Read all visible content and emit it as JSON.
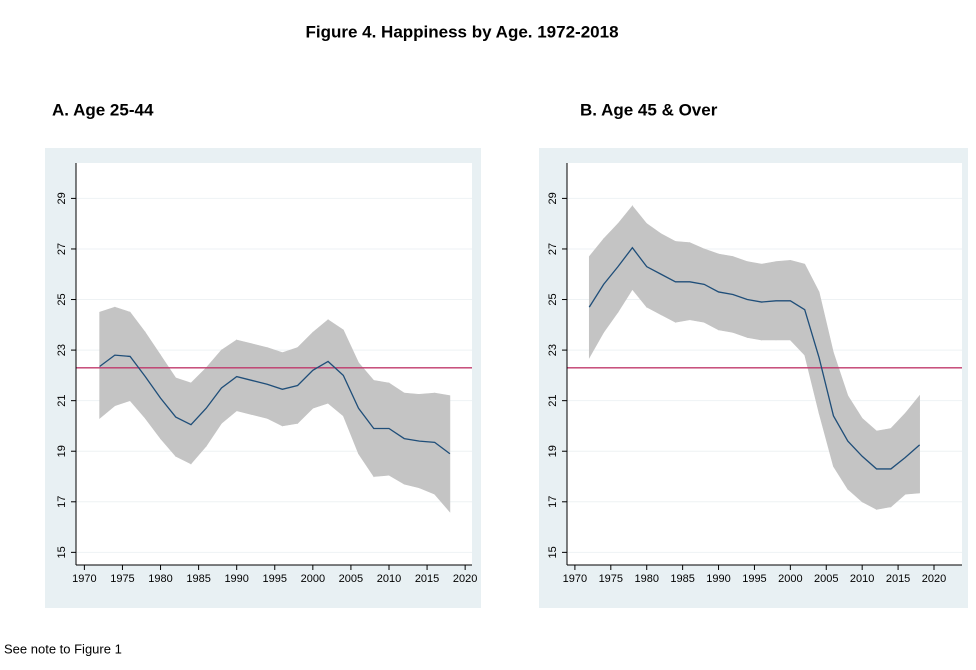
{
  "title": "Figure 4. Happiness by Age. 1972-2018",
  "note": "See note to Figure 1",
  "chart_data": [
    {
      "type": "line",
      "title": "A. Age 25-44",
      "x": [
        1972,
        1974,
        1976,
        1978,
        1980,
        1982,
        1984,
        1986,
        1988,
        1990,
        1992,
        1994,
        1996,
        1998,
        2000,
        2002,
        2004,
        2006,
        2008,
        2010,
        2012,
        2014,
        2016,
        2018
      ],
      "values": [
        22.35,
        22.8,
        22.75,
        21.95,
        21.1,
        20.35,
        20.05,
        20.7,
        21.5,
        21.95,
        21.8,
        21.65,
        21.45,
        21.6,
        22.2,
        22.55,
        22.0,
        20.7,
        19.9,
        19.9,
        19.5,
        19.4,
        19.35,
        18.9
      ],
      "upper": [
        24.5,
        24.7,
        24.5,
        23.7,
        22.8,
        21.9,
        21.7,
        22.3,
        23.0,
        23.4,
        23.25,
        23.1,
        22.9,
        23.1,
        23.7,
        24.2,
        23.8,
        22.5,
        21.8,
        21.7,
        21.3,
        21.25,
        21.3,
        21.2
      ],
      "lower": [
        20.3,
        20.8,
        21.0,
        20.3,
        19.5,
        18.8,
        18.5,
        19.2,
        20.1,
        20.6,
        20.45,
        20.3,
        20.0,
        20.1,
        20.7,
        20.9,
        20.4,
        18.9,
        18.0,
        18.05,
        17.7,
        17.55,
        17.3,
        16.6
      ],
      "color": "#1f4e79",
      "band_color": "#c4c4c4",
      "reference_line": {
        "value": 22.3,
        "color": "#c0396b"
      },
      "xlim": [
        1968.9,
        2020.9
      ],
      "xticks": [
        1970,
        1975,
        1980,
        1985,
        1990,
        1995,
        2000,
        2005,
        2010,
        2015,
        2020
      ],
      "ylim": [
        14.5,
        30.4
      ],
      "yticks": [
        15,
        17,
        19,
        21,
        23,
        25,
        27,
        29
      ],
      "grid": true
    },
    {
      "type": "line",
      "title": "B. Age 45 & Over",
      "x": [
        1972,
        1974,
        1976,
        1978,
        1980,
        1982,
        1984,
        1986,
        1988,
        1990,
        1992,
        1994,
        1996,
        1998,
        2000,
        2002,
        2004,
        2006,
        2008,
        2010,
        2012,
        2014,
        2016,
        2018
      ],
      "values": [
        24.7,
        25.6,
        26.3,
        27.05,
        26.3,
        26.0,
        25.7,
        25.7,
        25.6,
        25.3,
        25.2,
        25.0,
        24.9,
        24.95,
        24.95,
        24.6,
        22.7,
        20.4,
        19.4,
        18.8,
        18.3,
        18.3,
        18.75,
        19.25
      ],
      "upper": [
        26.7,
        27.4,
        28.0,
        28.7,
        28.0,
        27.6,
        27.3,
        27.25,
        27.0,
        26.8,
        26.7,
        26.5,
        26.4,
        26.5,
        26.55,
        26.4,
        25.3,
        22.9,
        21.2,
        20.3,
        19.8,
        19.9,
        20.5,
        21.2
      ],
      "lower": [
        22.7,
        23.7,
        24.5,
        25.4,
        24.7,
        24.4,
        24.1,
        24.2,
        24.1,
        23.8,
        23.7,
        23.5,
        23.4,
        23.4,
        23.4,
        22.8,
        20.5,
        18.4,
        17.5,
        17.0,
        16.7,
        16.8,
        17.3,
        17.35
      ],
      "color": "#1f4e79",
      "band_color": "#c4c4c4",
      "reference_line": {
        "value": 22.3,
        "color": "#c0396b"
      },
      "xlim": [
        1968.9,
        2023.9
      ],
      "xticks": [
        1970,
        1975,
        1980,
        1985,
        1990,
        1995,
        2000,
        2005,
        2010,
        2015,
        2020
      ],
      "ylim": [
        14.5,
        30.4
      ],
      "yticks": [
        15,
        17,
        19,
        21,
        23,
        25,
        27,
        29
      ],
      "grid": true
    }
  ]
}
